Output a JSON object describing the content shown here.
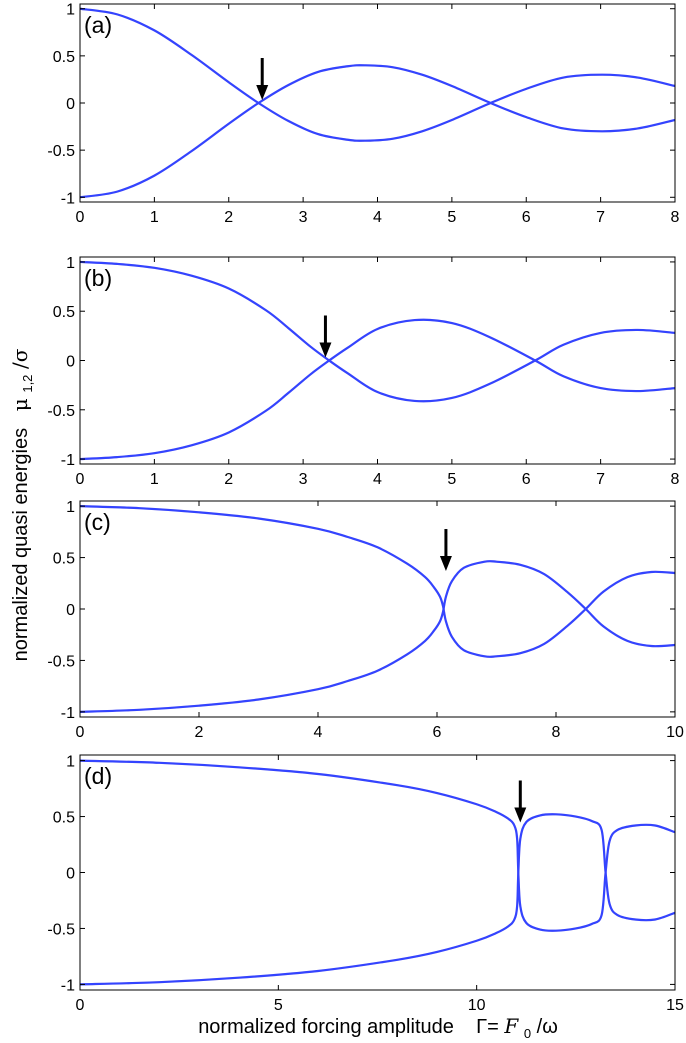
{
  "figure": {
    "ylabel_text": "normalized quasi energies",
    "ylabel_symbol": "μ",
    "ylabel_subscript": "1,2",
    "ylabel_tail": "/σ",
    "xlabel_text": "normalized forcing amplitude",
    "xlabel_gamma": "Γ=",
    "xlabel_F": "F",
    "xlabel_subscript": "0",
    "xlabel_tail": "/ω",
    "curve_color": "#3344ff",
    "glow_color": "#ff9a9a",
    "arrow_color": "#000000"
  },
  "chart_data": [
    {
      "type": "line",
      "panel_label": "(a)",
      "xlim": [
        0,
        8
      ],
      "ylim": [
        -1.05,
        1.05
      ],
      "xticks": [
        0,
        1,
        2,
        3,
        4,
        5,
        6,
        7,
        8
      ],
      "xtick_labels": [
        "0",
        "1",
        "2",
        "3",
        "4",
        "5",
        "6",
        "7",
        "8"
      ],
      "yticks": [
        1,
        0.5,
        0,
        -0.5,
        -1
      ],
      "ytick_labels": [
        "1",
        "0.5",
        "0",
        "-0.5",
        "-1"
      ],
      "grid": false,
      "series": [
        {
          "x": [
            0,
            0.5,
            1,
            1.5,
            2,
            2.4,
            2.8,
            3.2,
            3.6,
            3.83,
            4.2,
            4.6,
            5,
            5.52,
            6,
            6.5,
            7.02,
            7.5,
            8
          ],
          "y": [
            1,
            0.94,
            0.77,
            0.51,
            0.22,
            0,
            -0.19,
            -0.33,
            -0.39,
            -0.4,
            -0.38,
            -0.3,
            -0.18,
            0,
            0.15,
            0.27,
            0.3,
            0.27,
            0.18
          ]
        },
        {
          "x": [
            0,
            0.5,
            1,
            1.5,
            2,
            2.4,
            2.8,
            3.2,
            3.6,
            3.83,
            4.2,
            4.6,
            5,
            5.52,
            6,
            6.5,
            7.02,
            7.5,
            8
          ],
          "y": [
            -1,
            -0.94,
            -0.77,
            -0.51,
            -0.22,
            0,
            0.19,
            0.33,
            0.39,
            0.4,
            0.38,
            0.3,
            0.18,
            0,
            -0.15,
            -0.27,
            -0.3,
            -0.27,
            -0.18
          ]
        }
      ],
      "annotations": [
        {
          "type": "arrow",
          "x": 2.45,
          "y": 0
        }
      ]
    },
    {
      "type": "line",
      "panel_label": "(b)",
      "xlim": [
        0,
        8
      ],
      "ylim": [
        -1.05,
        1.05
      ],
      "xticks": [
        0,
        1,
        2,
        3,
        4,
        5,
        6,
        7,
        8
      ],
      "xtick_labels": [
        "0",
        "1",
        "2",
        "3",
        "4",
        "5",
        "6",
        "7",
        "8"
      ],
      "yticks": [
        1,
        0.5,
        0,
        -0.5,
        -1
      ],
      "ytick_labels": [
        "1",
        "0.5",
        "0",
        "-0.5",
        "-1"
      ],
      "grid": false,
      "series": [
        {
          "x": [
            0,
            0.5,
            1,
            1.5,
            2,
            2.5,
            2.8,
            3.1,
            3.35,
            3.6,
            4,
            4.5,
            5,
            5.5,
            6.12,
            6.5,
            7,
            7.5,
            8
          ],
          "y": [
            1,
            0.98,
            0.94,
            0.86,
            0.73,
            0.51,
            0.33,
            0.14,
            0,
            -0.13,
            -0.32,
            -0.41,
            -0.38,
            -0.24,
            0,
            0.16,
            0.28,
            0.31,
            0.28
          ]
        },
        {
          "x": [
            0,
            0.5,
            1,
            1.5,
            2,
            2.5,
            2.8,
            3.1,
            3.35,
            3.6,
            4,
            4.5,
            5,
            5.5,
            6.12,
            6.5,
            7,
            7.5,
            8
          ],
          "y": [
            -1,
            -0.98,
            -0.94,
            -0.86,
            -0.73,
            -0.51,
            -0.33,
            -0.14,
            0,
            0.13,
            0.32,
            0.41,
            0.38,
            0.24,
            0,
            -0.16,
            -0.28,
            -0.31,
            -0.28
          ]
        }
      ],
      "annotations": [
        {
          "type": "arrow",
          "x": 3.3,
          "y": 0
        }
      ]
    },
    {
      "type": "line",
      "panel_label": "(c)",
      "xlim": [
        0,
        10
      ],
      "ylim": [
        -1.05,
        1.05
      ],
      "xticks": [
        0,
        2,
        4,
        6,
        8,
        10
      ],
      "xtick_labels": [
        "0",
        "2",
        "4",
        "6",
        "8",
        "10"
      ],
      "yticks": [
        1,
        0.5,
        0,
        -0.5,
        -1
      ],
      "ytick_labels": [
        "1",
        "0.5",
        "0",
        "-0.5",
        "-1"
      ],
      "grid": false,
      "series": [
        {
          "x": [
            0,
            1,
            2,
            3,
            4,
            4.5,
            5,
            5.5,
            5.8,
            5.95,
            6.05,
            6.1,
            6.15,
            6.25,
            6.45,
            6.8,
            7.0,
            7.4,
            7.8,
            8.2,
            8.5,
            8.8,
            9.2,
            9.6,
            10
          ],
          "y": [
            1,
            0.98,
            0.94,
            0.88,
            0.78,
            0.7,
            0.6,
            0.44,
            0.31,
            0.21,
            0.12,
            0.03,
            -0.12,
            -0.27,
            -0.4,
            -0.46,
            -0.46,
            -0.43,
            -0.34,
            -0.16,
            0,
            0.17,
            0.31,
            0.36,
            0.35
          ]
        },
        {
          "x": [
            0,
            1,
            2,
            3,
            4,
            4.5,
            5,
            5.5,
            5.8,
            5.95,
            6.05,
            6.1,
            6.15,
            6.25,
            6.45,
            6.8,
            7.0,
            7.4,
            7.8,
            8.2,
            8.5,
            8.8,
            9.2,
            9.6,
            10
          ],
          "y": [
            -1,
            -0.98,
            -0.94,
            -0.88,
            -0.78,
            -0.7,
            -0.6,
            -0.44,
            -0.31,
            -0.21,
            -0.12,
            -0.03,
            0.12,
            0.27,
            0.4,
            0.46,
            0.46,
            0.43,
            0.34,
            0.16,
            0,
            -0.17,
            -0.31,
            -0.36,
            -0.35
          ]
        }
      ],
      "annotations": [
        {
          "type": "arrow",
          "x": 6.15,
          "y": 0.34
        }
      ]
    },
    {
      "type": "line",
      "panel_label": "(d)",
      "xlim": [
        0,
        15
      ],
      "ylim": [
        -1.05,
        1.05
      ],
      "xticks": [
        0,
        5,
        10,
        15
      ],
      "xtick_labels": [
        "0",
        "5",
        "10",
        "15"
      ],
      "yticks": [
        1,
        0.5,
        0,
        -0.5,
        -1
      ],
      "ytick_labels": [
        "1",
        "0.5",
        "0",
        "-0.5",
        "-1"
      ],
      "grid": false,
      "series": [
        {
          "x": [
            0,
            2,
            4,
            6,
            8,
            9,
            10,
            10.5,
            10.8,
            10.95,
            11.02,
            11.05,
            11.1,
            11.25,
            11.6,
            12,
            12.5,
            12.9,
            13.15,
            13.25,
            13.35,
            13.55,
            14,
            14.5,
            15
          ],
          "y": [
            1,
            0.98,
            0.94,
            0.88,
            0.78,
            0.71,
            0.61,
            0.54,
            0.48,
            0.42,
            0.3,
            0,
            -0.3,
            -0.45,
            -0.51,
            -0.52,
            -0.5,
            -0.46,
            -0.38,
            0,
            0.28,
            0.38,
            0.42,
            0.42,
            0.36
          ]
        },
        {
          "x": [
            0,
            2,
            4,
            6,
            8,
            9,
            10,
            10.5,
            10.8,
            10.95,
            11.02,
            11.05,
            11.1,
            11.25,
            11.6,
            12,
            12.5,
            12.9,
            13.15,
            13.25,
            13.35,
            13.55,
            14,
            14.5,
            15
          ],
          "y": [
            -1,
            -0.98,
            -0.94,
            -0.88,
            -0.78,
            -0.71,
            -0.61,
            -0.54,
            -0.48,
            -0.42,
            -0.3,
            0,
            0.3,
            0.45,
            0.51,
            0.52,
            0.5,
            0.46,
            0.38,
            0,
            -0.28,
            -0.38,
            -0.42,
            -0.42,
            -0.36
          ]
        }
      ],
      "annotations": [
        {
          "type": "arrow",
          "x": 11.1,
          "y": 0.42
        }
      ]
    }
  ]
}
